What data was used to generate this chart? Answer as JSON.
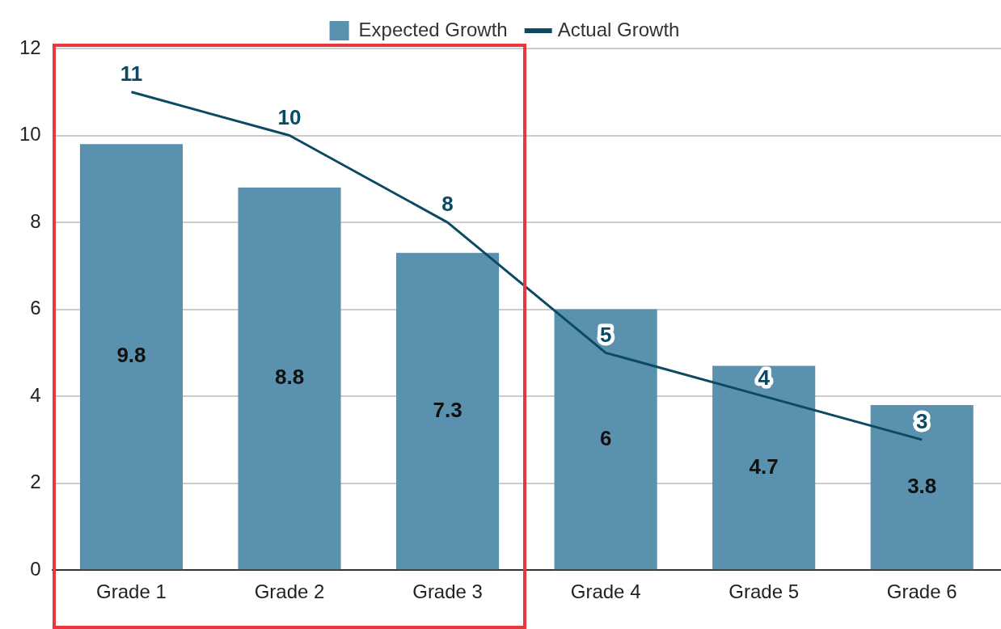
{
  "chart_data": {
    "type": "bar",
    "categories": [
      "Grade 1",
      "Grade 2",
      "Grade 3",
      "Grade 4",
      "Grade 5",
      "Grade 6"
    ],
    "series": [
      {
        "name": "Expected Growth",
        "color": "#5a91ae",
        "values": [
          9.8,
          8.8,
          7.3,
          6,
          4.7,
          3.8
        ]
      },
      {
        "name": "Actual Growth",
        "type": "line",
        "color": "#0b4a63",
        "values": [
          11,
          10,
          8,
          5,
          4,
          3
        ]
      }
    ],
    "ylim": [
      0,
      12
    ],
    "yticks": [
      0,
      2,
      4,
      6,
      8,
      10,
      12
    ],
    "grid": "y",
    "legend": "top",
    "marker": "none",
    "data_labels": true
  }
}
